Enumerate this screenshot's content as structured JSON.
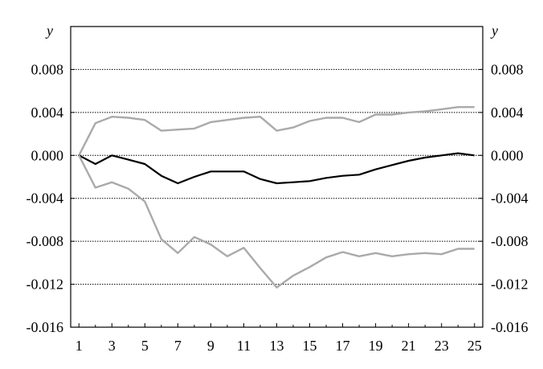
{
  "chart_data": {
    "type": "line",
    "ylabel_left": "y",
    "ylabel_right": "y",
    "xlim": [
      0.5,
      25.5
    ],
    "ylim": [
      -0.016,
      0.012
    ],
    "y_ticks": [
      0.008,
      0.004,
      0.0,
      -0.004,
      -0.008,
      -0.012,
      -0.016
    ],
    "y_tick_labels": [
      "0.008",
      "0.004",
      "0.000",
      "-0.004",
      "-0.008",
      "-0.012",
      "-0.016"
    ],
    "x_ticks": [
      1,
      3,
      5,
      7,
      9,
      11,
      13,
      15,
      17,
      19,
      21,
      23,
      25
    ],
    "x_tick_labels": [
      "1",
      "3",
      "5",
      "7",
      "9",
      "11",
      "13",
      "15",
      "17",
      "19",
      "21",
      "23",
      "25"
    ],
    "grid": "horizontal dotted",
    "x": [
      1,
      2,
      3,
      4,
      5,
      6,
      7,
      8,
      9,
      10,
      11,
      12,
      13,
      14,
      15,
      16,
      17,
      18,
      19,
      20,
      21,
      22,
      23,
      24,
      25
    ],
    "series": [
      {
        "color": "#aaaaaa",
        "values": [
          0.0,
          0.003,
          0.0036,
          0.0035,
          0.0033,
          0.0023,
          0.0024,
          0.0025,
          0.0031,
          0.0033,
          0.0035,
          0.0036,
          0.0023,
          0.0026,
          0.0032,
          0.0035,
          0.0035,
          0.0031,
          0.0038,
          0.0038,
          0.004,
          0.0041,
          0.0043,
          0.0045,
          0.0045
        ]
      },
      {
        "color": "#000000",
        "values": [
          0.0,
          -0.0008,
          0.0,
          -0.0004,
          -0.0008,
          -0.0019,
          -0.0026,
          -0.002,
          -0.0015,
          -0.0015,
          -0.0015,
          -0.0022,
          -0.0026,
          -0.0025,
          -0.0024,
          -0.0021,
          -0.0019,
          -0.0018,
          -0.0013,
          -0.0009,
          -0.0005,
          -0.0002,
          0.0,
          0.0002,
          0.0
        ]
      },
      {
        "color": "#aaaaaa",
        "values": [
          0.0,
          -0.003,
          -0.0025,
          -0.0031,
          -0.0043,
          -0.0078,
          -0.0091,
          -0.0076,
          -0.0083,
          -0.0094,
          -0.0086,
          -0.0105,
          -0.0123,
          -0.0112,
          -0.0104,
          -0.0095,
          -0.009,
          -0.0094,
          -0.0091,
          -0.0094,
          -0.0092,
          -0.0091,
          -0.0092,
          -0.0087,
          -0.0087
        ]
      }
    ]
  }
}
